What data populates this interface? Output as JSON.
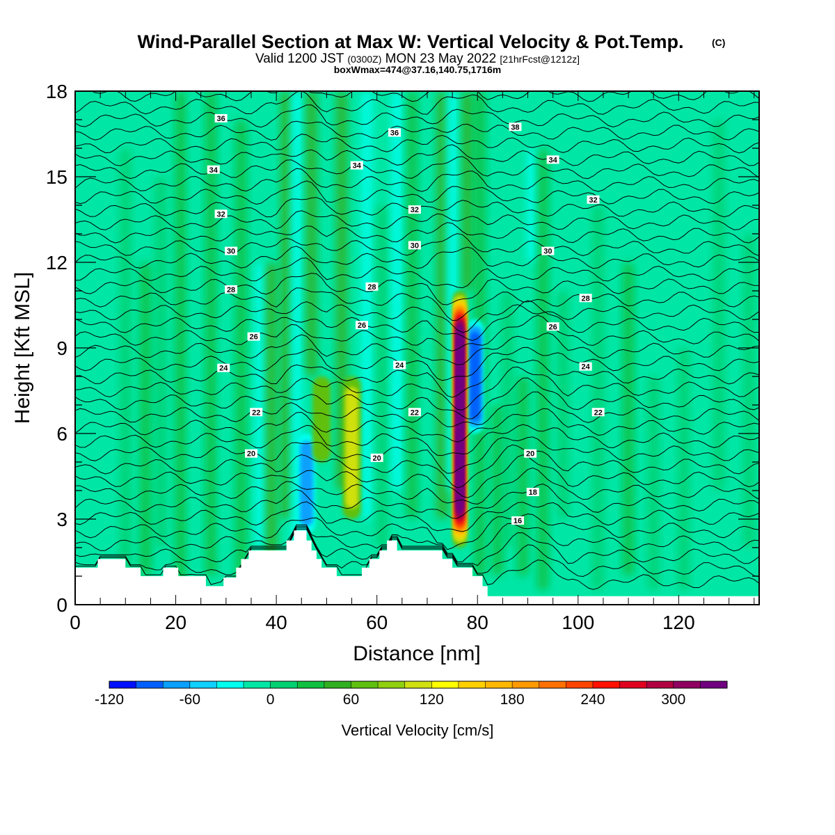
{
  "header": {
    "title": "Wind-Parallel Section at Max W: Vertical Velocity & Pot.Temp.",
    "title_mark": "(C)",
    "subtitle_valid": "Valid 1200 JST",
    "subtitle_z": "(0300Z)",
    "subtitle_date": "MON 23 May 2022",
    "subtitle_fcst": "[21hrFcst@1212z]",
    "boxline": "boxWmax=474@37.16,140.75,1716m"
  },
  "chart_data": {
    "type": "heatmap",
    "title": "Wind-Parallel Section at Max W: Vertical Velocity & Pot.Temp.",
    "xlabel": "Distance [nm]",
    "ylabel": "Height [Kft MSL]",
    "xlim": [
      0,
      136
    ],
    "ylim": [
      0,
      18
    ],
    "xticks": [
      0,
      20,
      40,
      60,
      80,
      100,
      120
    ],
    "yticks": [
      0,
      3,
      6,
      9,
      12,
      15,
      18
    ],
    "colorbar": {
      "label": "Vertical Velocity [cm/s]",
      "ticks": [
        -120,
        -60,
        0,
        60,
        120,
        180,
        240,
        300
      ],
      "levels": [
        -120,
        -100,
        -80,
        -60,
        -40,
        -20,
        0,
        20,
        40,
        60,
        80,
        100,
        120,
        140,
        160,
        180,
        200,
        220,
        240,
        260,
        280,
        300,
        320,
        340
      ],
      "colors": [
        "#0010ff",
        "#0060ff",
        "#0aa0ff",
        "#10d0ff",
        "#00ffef",
        "#00e6a5",
        "#00d070",
        "#10c040",
        "#30b020",
        "#60c010",
        "#90d010",
        "#d0e010",
        "#ffff00",
        "#ffd000",
        "#ffb800",
        "#ff9a00",
        "#ff7000",
        "#ff4400",
        "#ff1000",
        "#e00020",
        "#b00040",
        "#900060",
        "#700080"
      ]
    },
    "updrafts": [
      {
        "x": 76.5,
        "z_min": 2.0,
        "z_max": 11.0,
        "w_max": 474
      },
      {
        "x": 55,
        "z_min": 3.0,
        "z_max": 8.0,
        "w_max": 110
      },
      {
        "x": 49,
        "z_min": 5.0,
        "z_max": 8.0,
        "w_max": 60
      }
    ],
    "downdrafts": [
      {
        "x": 79.5,
        "z_min": 6.0,
        "z_max": 10.0,
        "w_min": -100
      },
      {
        "x": 46,
        "z_min": 2.5,
        "z_max": 6.0,
        "w_min": -80
      }
    ],
    "contour_labels": [
      {
        "text": "36",
        "x": 29.0,
        "z": 17.05
      },
      {
        "text": "36",
        "x": 63.5,
        "z": 16.55
      },
      {
        "text": "38",
        "x": 87.5,
        "z": 16.75
      },
      {
        "text": "34",
        "x": 27.5,
        "z": 15.25
      },
      {
        "text": "34",
        "x": 56.0,
        "z": 15.4
      },
      {
        "text": "34",
        "x": 95.0,
        "z": 15.6
      },
      {
        "text": "32",
        "x": 29.0,
        "z": 13.7
      },
      {
        "text": "32",
        "x": 67.5,
        "z": 13.85
      },
      {
        "text": "32",
        "x": 103.0,
        "z": 14.2
      },
      {
        "text": "30",
        "x": 31.0,
        "z": 12.4
      },
      {
        "text": "30",
        "x": 67.5,
        "z": 12.6
      },
      {
        "text": "30",
        "x": 94.0,
        "z": 12.4
      },
      {
        "text": "28",
        "x": 31.0,
        "z": 11.05
      },
      {
        "text": "28",
        "x": 59.0,
        "z": 11.15
      },
      {
        "text": "28",
        "x": 101.5,
        "z": 10.75
      },
      {
        "text": "26",
        "x": 35.5,
        "z": 9.4
      },
      {
        "text": "26",
        "x": 57.0,
        "z": 9.8
      },
      {
        "text": "26",
        "x": 95.0,
        "z": 9.75
      },
      {
        "text": "24",
        "x": 29.5,
        "z": 8.3
      },
      {
        "text": "24",
        "x": 64.5,
        "z": 8.4
      },
      {
        "text": "24",
        "x": 101.5,
        "z": 8.35
      },
      {
        "text": "22",
        "x": 36.0,
        "z": 6.75
      },
      {
        "text": "22",
        "x": 67.5,
        "z": 6.75
      },
      {
        "text": "22",
        "x": 104.0,
        "z": 6.75
      },
      {
        "text": "20",
        "x": 35.0,
        "z": 5.3
      },
      {
        "text": "20",
        "x": 60.0,
        "z": 5.15
      },
      {
        "text": "20",
        "x": 90.5,
        "z": 5.3
      },
      {
        "text": "18",
        "x": 91.0,
        "z": 3.95
      },
      {
        "text": "16",
        "x": 88.0,
        "z": 2.95
      }
    ],
    "terrain": [
      [
        0,
        1.3
      ],
      [
        4.5,
        1.3
      ],
      [
        4.5,
        1.6
      ],
      [
        10,
        1.6
      ],
      [
        10,
        1.3
      ],
      [
        13,
        1.3
      ],
      [
        13,
        1.0
      ],
      [
        17.5,
        1.0
      ],
      [
        17.5,
        1.3
      ],
      [
        20.5,
        1.3
      ],
      [
        20.5,
        1.0
      ],
      [
        26,
        1.0
      ],
      [
        26,
        0.65
      ],
      [
        29.5,
        0.65
      ],
      [
        29.5,
        0.95
      ],
      [
        32,
        0.95
      ],
      [
        32,
        1.3
      ],
      [
        33,
        1.3
      ],
      [
        33,
        1.6
      ],
      [
        34.5,
        1.6
      ],
      [
        34.5,
        1.9
      ],
      [
        42,
        1.9
      ],
      [
        42,
        2.25
      ],
      [
        43.5,
        2.25
      ],
      [
        43.5,
        2.6
      ],
      [
        46,
        2.6
      ],
      [
        46,
        2.25
      ],
      [
        47,
        2.25
      ],
      [
        47,
        1.9
      ],
      [
        48,
        1.9
      ],
      [
        48,
        1.6
      ],
      [
        49,
        1.6
      ],
      [
        49,
        1.3
      ],
      [
        52,
        1.3
      ],
      [
        52,
        1.0
      ],
      [
        57,
        1.0
      ],
      [
        57,
        1.3
      ],
      [
        58.5,
        1.3
      ],
      [
        58.5,
        1.6
      ],
      [
        60.5,
        1.6
      ],
      [
        60.5,
        1.9
      ],
      [
        62,
        1.9
      ],
      [
        62,
        2.25
      ],
      [
        64,
        2.25
      ],
      [
        64,
        1.9
      ],
      [
        73,
        1.9
      ],
      [
        73,
        1.6
      ],
      [
        75,
        1.6
      ],
      [
        75,
        1.3
      ],
      [
        79,
        1.3
      ],
      [
        79,
        1.0
      ],
      [
        81,
        1.0
      ],
      [
        81,
        0.65
      ],
      [
        82,
        0.65
      ],
      [
        82,
        0.3
      ],
      [
        136,
        0.3
      ]
    ]
  }
}
